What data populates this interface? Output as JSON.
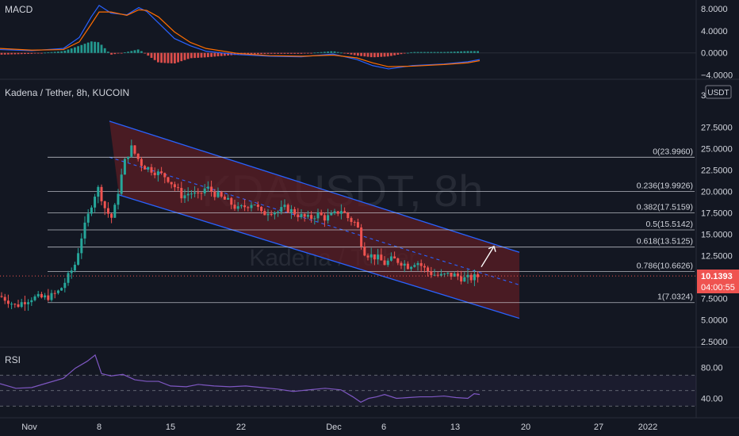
{
  "chart_data": [
    {
      "type": "line",
      "panel": "MACD",
      "title": "MACD",
      "y_ticks": [
        "8.0000",
        "4.0000",
        "0.0000",
        "−4.0000"
      ],
      "y_tick_values": [
        8,
        4,
        0,
        -4
      ],
      "ylim": [
        -4.2,
        9
      ],
      "series": [
        {
          "color": "#2962ff",
          "points": [
            [
              0,
              0.6
            ],
            [
              40,
              0.4
            ],
            [
              80,
              0.8
            ],
            [
              100,
              2.8
            ],
            [
              115,
              6.5
            ],
            [
              125,
              8.6
            ],
            [
              140,
              7.2
            ],
            [
              160,
              6.9
            ],
            [
              175,
              8.2
            ],
            [
              185,
              7.5
            ],
            [
              200,
              5.4
            ],
            [
              220,
              2.6
            ],
            [
              240,
              1.3
            ],
            [
              260,
              0.3
            ],
            [
              300,
              -0.3
            ],
            [
              340,
              -0.6
            ],
            [
              380,
              -0.7
            ],
            [
              420,
              -0.2
            ],
            [
              450,
              -1.2
            ],
            [
              470,
              -2.3
            ],
            [
              490,
              -2.9
            ],
            [
              520,
              -2.3
            ],
            [
              560,
              -2.0
            ],
            [
              590,
              -1.6
            ],
            [
              605,
              -1.2
            ]
          ]
        },
        {
          "color": "#ff6d00",
          "points": [
            [
              0,
              0.8
            ],
            [
              40,
              0.5
            ],
            [
              80,
              0.6
            ],
            [
              100,
              2.0
            ],
            [
              115,
              5.2
            ],
            [
              125,
              7.4
            ],
            [
              140,
              7.4
            ],
            [
              160,
              6.8
            ],
            [
              175,
              7.8
            ],
            [
              185,
              7.7
            ],
            [
              200,
              6.5
            ],
            [
              220,
              3.8
            ],
            [
              240,
              1.9
            ],
            [
              260,
              0.8
            ],
            [
              300,
              -0.1
            ],
            [
              340,
              -0.5
            ],
            [
              380,
              -0.6
            ],
            [
              420,
              -0.4
            ],
            [
              450,
              -0.9
            ],
            [
              470,
              -1.8
            ],
            [
              490,
              -2.5
            ],
            [
              520,
              -2.4
            ],
            [
              560,
              -2.1
            ],
            [
              590,
              -1.8
            ],
            [
              605,
              -1.4
            ]
          ]
        }
      ],
      "histogram_color_up": "#26a69a",
      "histogram_color_down": "#ef5350"
    },
    {
      "type": "candlestick",
      "panel": "price",
      "title": "Kadena / Tether, 8h, KUCOIN",
      "watermark": "KDAUSDT, 8h",
      "watermark_sub": "Kadena / Tether",
      "currency_badge": "USDT",
      "y_ticks": [
        "27.5000",
        "25.0000",
        "22.5000",
        "20.0000",
        "17.5000",
        "15.0000",
        "12.5000",
        "10.0000",
        "7.5000",
        "5.0000",
        "2.5000"
      ],
      "y_tick_values": [
        27.5,
        25,
        22.5,
        20,
        17.5,
        15,
        12.5,
        10,
        7.5,
        5,
        2.5
      ],
      "ylim": [
        2.2,
        30.5
      ],
      "last_price": "10.1393",
      "last_price_value": 10.1393,
      "countdown": "04:00:55",
      "close_path": [
        [
          0,
          7.8
        ],
        [
          10,
          7.3
        ],
        [
          20,
          6.6
        ],
        [
          30,
          7.2
        ],
        [
          40,
          7.6
        ],
        [
          55,
          7.6
        ],
        [
          65,
          7.8
        ],
        [
          75,
          8.4
        ],
        [
          85,
          9.9
        ],
        [
          95,
          11.6
        ],
        [
          103,
          14.8
        ],
        [
          110,
          16.8
        ],
        [
          118,
          19.4
        ],
        [
          125,
          20.5
        ],
        [
          130,
          18.5
        ],
        [
          135,
          17.6
        ],
        [
          142,
          16.8
        ],
        [
          150,
          20.5
        ],
        [
          157,
          23.4
        ],
        [
          165,
          25.2
        ],
        [
          172,
          24.1
        ],
        [
          180,
          23.0
        ],
        [
          190,
          22.6
        ],
        [
          200,
          22.1
        ],
        [
          210,
          21.7
        ],
        [
          220,
          20.6
        ],
        [
          230,
          19.4
        ],
        [
          240,
          19.9
        ],
        [
          250,
          19.4
        ],
        [
          260,
          20.5
        ],
        [
          270,
          19.8
        ],
        [
          280,
          19.2
        ],
        [
          290,
          18.7
        ],
        [
          300,
          17.9
        ],
        [
          310,
          18.3
        ],
        [
          320,
          18.8
        ],
        [
          330,
          17.3
        ],
        [
          340,
          17.8
        ],
        [
          350,
          17.6
        ],
        [
          360,
          18.1
        ],
        [
          370,
          17.6
        ],
        [
          380,
          17.1
        ],
        [
          390,
          16.8
        ],
        [
          400,
          17.4
        ],
        [
          410,
          16.9
        ],
        [
          420,
          17.2
        ],
        [
          430,
          17.9
        ],
        [
          440,
          16.8
        ],
        [
          450,
          16.2
        ],
        [
          458,
          13.1
        ],
        [
          465,
          12.6
        ],
        [
          475,
          12.3
        ],
        [
          485,
          11.6
        ],
        [
          495,
          12.1
        ],
        [
          505,
          11.8
        ],
        [
          515,
          11.3
        ],
        [
          525,
          11.9
        ],
        [
          535,
          11.0
        ],
        [
          545,
          10.4
        ],
        [
          555,
          10.1
        ],
        [
          565,
          10.3
        ],
        [
          575,
          10.2
        ],
        [
          585,
          9.8
        ],
        [
          595,
          9.9
        ],
        [
          605,
          10.14
        ]
      ],
      "channel": {
        "upper": [
          [
            138,
            28.2
          ],
          [
            655,
            12.9
          ]
        ],
        "lower": [
          [
            150,
            19.6
          ],
          [
            655,
            5.2
          ]
        ],
        "mid_dashed": [
          [
            138,
            24.0
          ],
          [
            655,
            9.1
          ]
        ],
        "line_color": "#2962ff",
        "fill_color": "#5c1d24"
      },
      "fibonacci": [
        {
          "label": "0(23.9960)",
          "value": 23.996
        },
        {
          "label": "0.236(19.9926)",
          "value": 19.9926
        },
        {
          "label": "0.382(17.5159)",
          "value": 17.5159
        },
        {
          "label": "0.5(15.5142)",
          "value": 15.5142
        },
        {
          "label": "0.618(13.5125)",
          "value": 13.5125
        },
        {
          "label": "0.786(10.6626)",
          "value": 10.6626
        },
        {
          "label": "1(7.0324)",
          "value": 7.0324
        }
      ],
      "arrow": {
        "from": [
          607,
          11.2
        ],
        "to": [
          623,
          13.6
        ],
        "color": "#ffffff"
      }
    },
    {
      "type": "line",
      "panel": "RSI",
      "title": "RSI",
      "y_ticks": [
        "80.00",
        "40.00"
      ],
      "y_tick_values": [
        80,
        40
      ],
      "bands": [
        70,
        50,
        30
      ],
      "ylim": [
        20,
        100
      ],
      "series": [
        {
          "color": "#7e57c2",
          "points": [
            [
              0,
              59
            ],
            [
              20,
              53
            ],
            [
              40,
              54
            ],
            [
              60,
              60
            ],
            [
              80,
              66
            ],
            [
              95,
              79
            ],
            [
              110,
              88
            ],
            [
              120,
              96
            ],
            [
              128,
              72
            ],
            [
              140,
              69
            ],
            [
              155,
              71
            ],
            [
              170,
              64
            ],
            [
              185,
              62
            ],
            [
              200,
              62
            ],
            [
              215,
              56
            ],
            [
              235,
              55
            ],
            [
              250,
              58
            ],
            [
              270,
              56
            ],
            [
              290,
              55
            ],
            [
              310,
              56
            ],
            [
              330,
              54
            ],
            [
              350,
              52
            ],
            [
              370,
              49
            ],
            [
              390,
              51
            ],
            [
              410,
              53
            ],
            [
              430,
              51
            ],
            [
              445,
              42
            ],
            [
              455,
              35
            ],
            [
              465,
              40
            ],
            [
              475,
              42
            ],
            [
              485,
              45
            ],
            [
              500,
              40
            ],
            [
              515,
              41
            ],
            [
              530,
              42
            ],
            [
              545,
              42
            ],
            [
              560,
              43
            ],
            [
              575,
              41
            ],
            [
              590,
              40
            ],
            [
              598,
              46
            ],
            [
              605,
              45
            ]
          ]
        }
      ]
    }
  ],
  "x_axis": {
    "ticks": [
      {
        "label": "Nov",
        "x": 37
      },
      {
        "label": "8",
        "x": 125
      },
      {
        "label": "15",
        "x": 215
      },
      {
        "label": "22",
        "x": 304
      },
      {
        "label": "Dec",
        "x": 421
      },
      {
        "label": "6",
        "x": 484
      },
      {
        "label": "13",
        "x": 574
      },
      {
        "label": "20",
        "x": 663
      },
      {
        "label": "27",
        "x": 755
      },
      {
        "label": "2022",
        "x": 817
      }
    ]
  },
  "colors": {
    "background": "#131722",
    "grid": "#1e222d",
    "up": "#26a69a",
    "down": "#ef5350",
    "text": "#d1d4dc",
    "price_label_bg": "#ef5350",
    "fib_line": "#d1d4dc"
  }
}
